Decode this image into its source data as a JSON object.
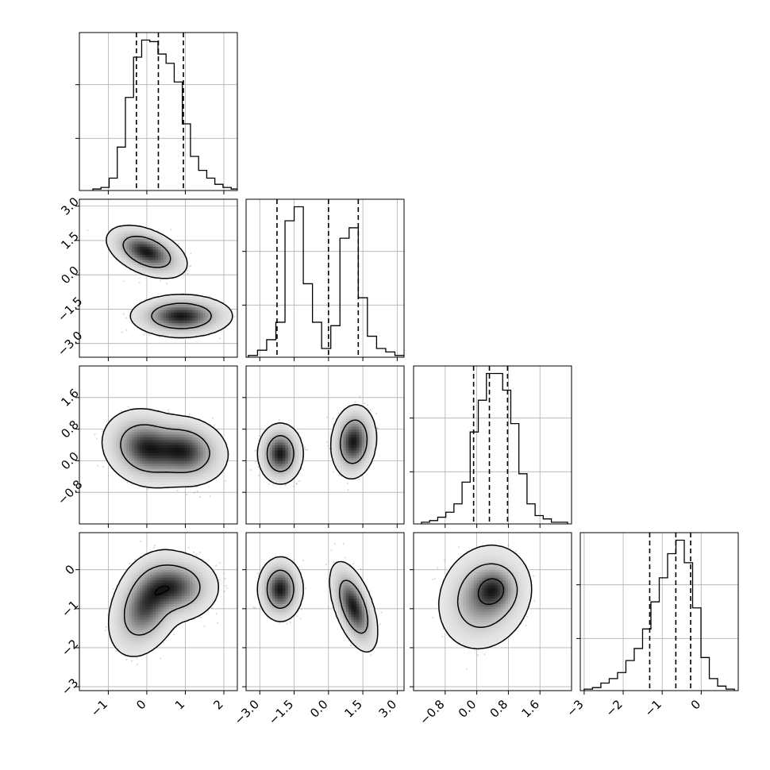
{
  "chart_data": {
    "type": "corner",
    "parameters": [
      "",
      "",
      "",
      ""
    ],
    "parameter_ranges": [
      [
        -1.75,
        2.35
      ],
      [
        -3.6,
        3.3
      ],
      [
        -1.6,
        2.4
      ],
      [
        -3.1,
        0.95
      ]
    ],
    "ticks": [
      {
        "values": [
          -1,
          0,
          1,
          2
        ],
        "labels": [
          "−1",
          "0",
          "1",
          "2"
        ]
      },
      {
        "values": [
          -3.0,
          -1.5,
          0.0,
          1.5,
          3.0
        ],
        "labels": [
          "−3.0",
          "−1.5",
          "0.0",
          "1.5",
          "3.0"
        ]
      },
      {
        "values": [
          -0.8,
          0.0,
          0.8,
          1.6
        ],
        "labels": [
          "−0.8",
          "0.0",
          "0.8",
          "1.6"
        ]
      },
      {
        "values": [
          -3,
          -2,
          -1,
          0
        ],
        "labels": [
          "−3",
          "−2",
          "−1",
          "0"
        ]
      }
    ],
    "histograms": [
      {
        "bin_edges_range": [
          -1.4,
          2.4
        ],
        "counts": [
          1,
          2,
          8,
          28,
          60,
          86,
          97,
          96,
          88,
          82,
          70,
          43,
          22,
          13,
          8,
          4,
          2,
          1
        ],
        "quantiles": [
          -0.27,
          0.3,
          0.95
        ]
      },
      {
        "bin_edges_range": [
          -3.5,
          3.3
        ],
        "counts": [
          1,
          4,
          10,
          20,
          78,
          86,
          42,
          20,
          5,
          18,
          68,
          74,
          34,
          12,
          5,
          3,
          1
        ],
        "quantiles": [
          -2.25,
          0.0,
          1.3
        ]
      },
      {
        "bin_edges_range": [
          -1.4,
          2.3
        ],
        "counts": [
          1,
          2,
          4,
          7,
          12,
          25,
          55,
          74,
          90,
          90,
          80,
          60,
          30,
          12,
          5,
          3,
          1,
          1
        ],
        "quantiles": [
          -0.08,
          0.32,
          0.78
        ]
      },
      {
        "bin_edges_range": [
          -3.0,
          0.85
        ],
        "counts": [
          1,
          2,
          5,
          8,
          12,
          20,
          28,
          41,
          59,
          75,
          91,
          100,
          85,
          55,
          22,
          8,
          3,
          1
        ],
        "quantiles": [
          -1.32,
          -0.65,
          -0.27
        ]
      }
    ],
    "histogram_y_ticks": [
      0.33,
      0.67
    ],
    "panels_2d": [
      {
        "x": 0,
        "y": 1,
        "clusters": [
          {
            "mean": [
              0.0,
              1.0
            ],
            "sd": [
              0.38,
              0.42
            ],
            "rho": -0.45
          },
          {
            "mean": [
              0.9,
              -1.8
            ],
            "sd": [
              0.48,
              0.34
            ],
            "rho": 0.0
          }
        ],
        "levels": [
          1.0,
          2.0,
          3.0
        ]
      },
      {
        "x": 0,
        "y": 2,
        "clusters": [
          {
            "mean": [
              0.0,
              0.32
            ],
            "sd": [
              0.42,
              0.36
            ],
            "rho": -0.15
          },
          {
            "mean": [
              0.95,
              0.24
            ],
            "sd": [
              0.42,
              0.32
            ],
            "rho": -0.1
          }
        ],
        "levels": [
          1.0,
          2.0,
          3.0
        ]
      },
      {
        "x": 0,
        "y": 3,
        "clusters": [
          {
            "mean": [
              0.0,
              -0.9
            ],
            "sd": [
              0.36,
              0.48
            ],
            "rho": 0.35
          },
          {
            "mean": [
              0.7,
              -0.45
            ],
            "sd": [
              0.42,
              0.32
            ],
            "rho": 0.0
          }
        ],
        "levels": [
          1.0,
          2.0,
          3.0
        ]
      },
      {
        "x": 1,
        "y": 2,
        "clusters": [
          {
            "mean": [
              -2.1,
              0.18
            ],
            "sd": [
              0.36,
              0.28
            ],
            "rho": 0.0
          },
          {
            "mean": [
              1.1,
              0.48
            ],
            "sd": [
              0.36,
              0.34
            ],
            "rho": 0.1
          }
        ],
        "levels": [
          1.0,
          2.0,
          3.0
        ]
      },
      {
        "x": 1,
        "y": 3,
        "clusters": [
          {
            "mean": [
              -2.1,
              -0.5
            ],
            "sd": [
              0.36,
              0.3
            ],
            "rho": 0.0
          },
          {
            "mean": [
              1.1,
              -0.95
            ],
            "sd": [
              0.38,
              0.42
            ],
            "rho": -0.55
          }
        ],
        "levels": [
          1.0,
          2.0,
          3.0
        ]
      },
      {
        "x": 2,
        "y": 3,
        "clusters": [
          {
            "mean": [
              0.2,
              -0.7
            ],
            "sd": [
              0.42,
              0.48
            ],
            "rho": 0.15
          },
          {
            "mean": [
              0.45,
              -0.5
            ],
            "sd": [
              0.28,
              0.28
            ],
            "rho": 0.0
          }
        ],
        "levels": [
          1.0,
          2.0,
          3.0
        ]
      }
    ],
    "grid": true,
    "colors": {
      "contour": "#000000",
      "density": "#000000",
      "scatter": "#808080"
    }
  }
}
